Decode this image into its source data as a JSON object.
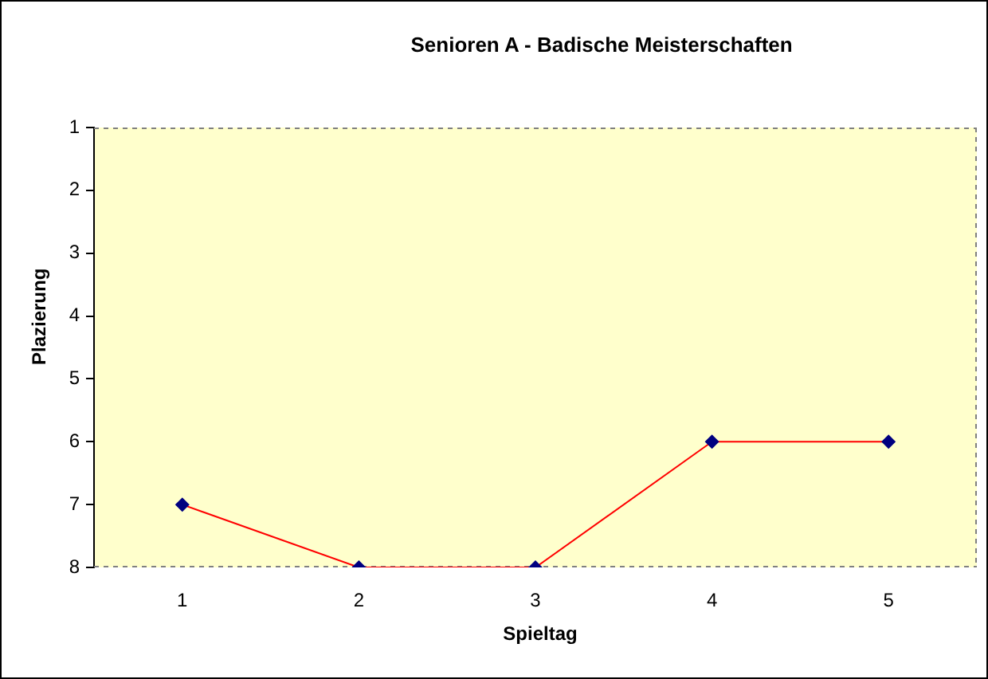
{
  "chart_data": {
    "type": "line",
    "title": "Senioren A - Badische Meisterschaften",
    "xlabel": "Spieltag",
    "ylabel": "Plazierung",
    "categories": [
      "1",
      "2",
      "3",
      "4",
      "5"
    ],
    "series": [
      {
        "color": "#ff0000",
        "values": [
          7,
          8,
          8,
          6,
          6
        ]
      }
    ],
    "ylim": [
      8,
      1
    ],
    "yticks": [
      1,
      2,
      3,
      4,
      5,
      6,
      7,
      8
    ],
    "marker": "diamond",
    "line_style": "solid"
  }
}
